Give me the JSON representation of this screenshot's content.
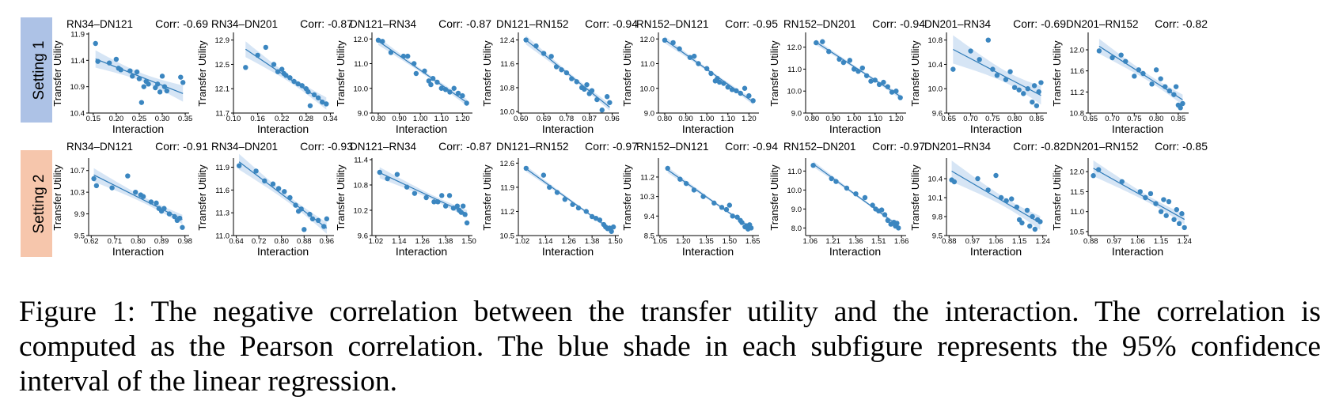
{
  "rows": [
    "Setting 1",
    "Setting 2"
  ],
  "colors": {
    "point": "#3b86c0",
    "line": "#2f7bb8",
    "ci": "#cfe0f3",
    "badge1": "#adc2e6",
    "badge2": "#f6c6ac"
  },
  "caption": "Figure 1: The negative correlation between the transfer utility and the interaction. The correlation is computed as the Pearson correlation. The blue shade in each subfigure represents the 95% confidence interval of the linear regression.",
  "chart_data": [
    {
      "type": "scatter",
      "row": 1,
      "title": "RN34–DN121",
      "corr": "Corr: -0.69",
      "xlabel": "Interaction",
      "ylabel": "Transfer Utility",
      "xticks": [
        "0.15",
        "0.20",
        "0.25",
        "0.30",
        "0.35"
      ],
      "yticks": [
        "10.4",
        "10.9",
        "11.4",
        "11.9"
      ],
      "xlim": [
        0.14,
        0.355
      ],
      "ylim": [
        10.4,
        11.9
      ],
      "x": [
        0.155,
        0.16,
        0.185,
        0.2,
        0.205,
        0.21,
        0.23,
        0.235,
        0.245,
        0.25,
        0.255,
        0.26,
        0.265,
        0.27,
        0.285,
        0.29,
        0.295,
        0.3,
        0.305,
        0.31,
        0.34,
        0.345
      ],
      "y": [
        11.72,
        11.38,
        11.35,
        11.42,
        11.25,
        11.22,
        11.2,
        11.1,
        11.18,
        11.05,
        10.6,
        10.9,
        11.0,
        10.95,
        10.88,
        10.95,
        10.8,
        11.1,
        10.9,
        10.82,
        11.08,
        10.98
      ]
    },
    {
      "type": "scatter",
      "row": 1,
      "title": "RN34–DN201",
      "corr": "Corr: -0.87",
      "xlabel": "Interaction",
      "ylabel": "Transfer Utility",
      "xticks": [
        "0.10",
        "0.16",
        "0.22",
        "0.28",
        "0.34"
      ],
      "yticks": [
        "11.7",
        "12.1",
        "12.5",
        "12.9"
      ],
      "xlim": [
        0.1,
        0.345
      ],
      "ylim": [
        11.7,
        13.0
      ],
      "x": [
        0.13,
        0.16,
        0.18,
        0.2,
        0.21,
        0.22,
        0.225,
        0.23,
        0.24,
        0.25,
        0.26,
        0.27,
        0.28,
        0.285,
        0.29,
        0.3,
        0.31,
        0.32,
        0.33
      ],
      "y": [
        12.45,
        12.65,
        12.78,
        12.5,
        12.38,
        12.42,
        12.35,
        12.32,
        12.28,
        12.22,
        12.18,
        12.15,
        12.1,
        12.05,
        11.82,
        12.0,
        11.95,
        11.88,
        11.85
      ]
    },
    {
      "type": "scatter",
      "row": 1,
      "title": "DN121–RN34",
      "corr": "Corr: -0.87",
      "xlabel": "Interaction",
      "ylabel": "Transfer Utility",
      "xticks": [
        "0.80",
        "0.90",
        "1.00",
        "1.10",
        "1.20"
      ],
      "yticks": [
        "9.0",
        "10.0",
        "11.0",
        "12.0"
      ],
      "xlim": [
        0.77,
        1.24
      ],
      "ylim": [
        9.0,
        12.2
      ],
      "x": [
        0.8,
        0.82,
        0.86,
        0.92,
        0.94,
        0.97,
        0.98,
        1.02,
        1.04,
        1.05,
        1.06,
        1.08,
        1.1,
        1.12,
        1.14,
        1.16,
        1.18,
        1.2,
        1.22
      ],
      "y": [
        11.95,
        11.9,
        11.45,
        11.3,
        11.3,
        11.0,
        10.6,
        10.7,
        10.3,
        10.15,
        10.4,
        10.25,
        10.0,
        9.95,
        9.85,
        10.0,
        9.8,
        9.7,
        9.4
      ]
    },
    {
      "type": "scatter",
      "row": 1,
      "title": "DN121–RN152",
      "corr": "Corr: -0.94",
      "xlabel": "Interaction",
      "ylabel": "Transfer Utility",
      "xticks": [
        "0.60",
        "0.69",
        "0.78",
        "0.87",
        "0.96"
      ],
      "yticks": [
        "10.0",
        "10.8",
        "11.6",
        "12.4"
      ],
      "xlim": [
        0.59,
        0.98
      ],
      "ylim": [
        9.95,
        12.6
      ],
      "x": [
        0.62,
        0.66,
        0.69,
        0.72,
        0.74,
        0.76,
        0.78,
        0.8,
        0.82,
        0.84,
        0.85,
        0.86,
        0.87,
        0.88,
        0.9,
        0.92,
        0.94,
        0.95
      ],
      "y": [
        12.4,
        12.2,
        11.95,
        11.85,
        11.5,
        11.4,
        11.3,
        11.1,
        11.0,
        10.8,
        10.75,
        10.9,
        10.6,
        10.7,
        10.4,
        10.05,
        10.5,
        10.3
      ]
    },
    {
      "type": "scatter",
      "row": 1,
      "title": "RN152–DN121",
      "corr": "Corr: -0.95",
      "xlabel": "Interaction",
      "ylabel": "Transfer Utility",
      "xticks": [
        "0.80",
        "0.90",
        "1.00",
        "1.10",
        "1.20"
      ],
      "yticks": [
        "9.0",
        "10.0",
        "11.0",
        "12.0"
      ],
      "xlim": [
        0.77,
        1.24
      ],
      "ylim": [
        9.0,
        12.2
      ],
      "x": [
        0.8,
        0.84,
        0.87,
        0.92,
        0.94,
        0.96,
        1.0,
        1.02,
        1.04,
        1.05,
        1.06,
        1.08,
        1.1,
        1.12,
        1.14,
        1.16,
        1.18,
        1.2,
        1.22
      ],
      "y": [
        11.95,
        11.85,
        11.6,
        11.25,
        11.3,
        11.0,
        10.8,
        10.6,
        10.3,
        10.4,
        10.25,
        10.2,
        10.05,
        9.95,
        9.9,
        9.8,
        10.0,
        9.7,
        9.5
      ]
    },
    {
      "type": "scatter",
      "row": 1,
      "title": "RN152–DN201",
      "corr": "Corr: -0.94",
      "xlabel": "Interaction",
      "ylabel": "Transfer Utility",
      "xticks": [
        "0.80",
        "0.90",
        "1.00",
        "1.10",
        "1.20"
      ],
      "yticks": [
        "9.0",
        "10.0",
        "11.0",
        "12.0"
      ],
      "xlim": [
        0.77,
        1.24
      ],
      "ylim": [
        9.0,
        12.6
      ],
      "x": [
        0.82,
        0.85,
        0.88,
        0.93,
        0.95,
        0.98,
        1.0,
        1.02,
        1.04,
        1.06,
        1.08,
        1.1,
        1.12,
        1.14,
        1.16,
        1.18,
        1.2,
        1.22
      ],
      "y": [
        12.2,
        12.25,
        11.8,
        11.45,
        11.3,
        11.4,
        11.0,
        10.9,
        11.05,
        10.7,
        10.45,
        10.5,
        10.3,
        10.4,
        10.2,
        9.95,
        10.0,
        9.7
      ]
    },
    {
      "type": "scatter",
      "row": 1,
      "title": "DN201–RN34",
      "corr": "Corr: -0.69",
      "xlabel": "Interaction",
      "ylabel": "Transfer Utility",
      "xticks": [
        "0.65",
        "0.70",
        "0.75",
        "0.80",
        "0.85"
      ],
      "yticks": [
        "9.6",
        "10.0",
        "10.4",
        "10.8"
      ],
      "xlim": [
        0.645,
        0.87
      ],
      "ylim": [
        9.6,
        10.9
      ],
      "x": [
        0.66,
        0.7,
        0.72,
        0.74,
        0.75,
        0.76,
        0.78,
        0.79,
        0.8,
        0.81,
        0.82,
        0.83,
        0.84,
        0.845,
        0.85,
        0.855,
        0.86
      ],
      "y": [
        10.32,
        10.62,
        10.48,
        10.8,
        10.32,
        10.22,
        10.15,
        10.28,
        10.02,
        9.98,
        9.92,
        10.0,
        9.78,
        10.05,
        9.72,
        9.95,
        10.1
      ]
    },
    {
      "type": "scatter",
      "row": 1,
      "title": "DN201–RN152",
      "corr": "Corr: -0.82",
      "xlabel": "Interaction",
      "ylabel": "Transfer Utility",
      "xticks": [
        "0.65",
        "0.70",
        "0.75",
        "0.80",
        "0.85"
      ],
      "yticks": [
        "10.8",
        "11.2",
        "11.6",
        "12.0"
      ],
      "xlim": [
        0.645,
        0.87
      ],
      "ylim": [
        10.8,
        12.3
      ],
      "x": [
        0.67,
        0.7,
        0.72,
        0.73,
        0.75,
        0.76,
        0.77,
        0.79,
        0.8,
        0.81,
        0.82,
        0.83,
        0.84,
        0.845,
        0.85,
        0.855,
        0.86
      ],
      "y": [
        11.98,
        11.85,
        11.9,
        11.78,
        11.5,
        11.62,
        11.55,
        11.35,
        11.62,
        11.45,
        11.3,
        11.22,
        11.15,
        11.3,
        10.95,
        10.9,
        10.98
      ]
    },
    {
      "type": "scatter",
      "row": 2,
      "title": "RN34–DN121",
      "corr": "Corr: -0.91",
      "xlabel": "Interaction",
      "ylabel": "Transfer Utility",
      "xticks": [
        "0.62",
        "0.71",
        "0.80",
        "0.89",
        "0.98"
      ],
      "yticks": [
        "9.5",
        "9.9",
        "10.3",
        "10.7"
      ],
      "xlim": [
        0.61,
        0.99
      ],
      "ylim": [
        9.5,
        10.9
      ],
      "x": [
        0.63,
        0.64,
        0.7,
        0.76,
        0.79,
        0.81,
        0.82,
        0.85,
        0.87,
        0.88,
        0.89,
        0.9,
        0.92,
        0.94,
        0.95,
        0.96,
        0.97
      ],
      "y": [
        10.55,
        10.42,
        10.38,
        10.6,
        10.3,
        10.25,
        10.22,
        10.12,
        10.1,
        10.0,
        9.95,
        10.0,
        9.9,
        9.85,
        9.78,
        9.82,
        9.65
      ]
    },
    {
      "type": "scatter",
      "row": 2,
      "title": "RN34–DN201",
      "corr": "Corr: -0.93",
      "xlabel": "Interaction",
      "ylabel": "Transfer Utility",
      "xticks": [
        "0.64",
        "0.72",
        "0.80",
        "0.88",
        "0.96"
      ],
      "yticks": [
        "11.0",
        "11.3",
        "11.6",
        "11.9"
      ],
      "xlim": [
        0.63,
        0.98
      ],
      "ylim": [
        11.0,
        12.0
      ],
      "x": [
        0.65,
        0.71,
        0.74,
        0.77,
        0.79,
        0.81,
        0.83,
        0.85,
        0.86,
        0.87,
        0.88,
        0.9,
        0.91,
        0.93,
        0.95,
        0.96
      ],
      "y": [
        11.92,
        11.85,
        11.72,
        11.68,
        11.62,
        11.58,
        11.5,
        11.4,
        11.32,
        11.35,
        11.08,
        11.28,
        11.22,
        11.2,
        11.12,
        11.22
      ]
    },
    {
      "type": "scatter",
      "row": 2,
      "title": "DN121–RN34",
      "corr": "Corr: -0.87",
      "xlabel": "Interaction",
      "ylabel": "Transfer Utility",
      "xticks": [
        "1.02",
        "1.14",
        "1.26",
        "1.38",
        "1.50"
      ],
      "yticks": [
        "9.6",
        "10.2",
        "10.8",
        "11.4"
      ],
      "xlim": [
        1.0,
        1.51
      ],
      "ylim": [
        9.6,
        11.4
      ],
      "x": [
        1.04,
        1.08,
        1.13,
        1.18,
        1.22,
        1.28,
        1.32,
        1.34,
        1.36,
        1.38,
        1.4,
        1.42,
        1.44,
        1.45,
        1.46,
        1.47,
        1.48,
        1.49
      ],
      "y": [
        11.1,
        10.95,
        11.05,
        10.75,
        10.6,
        10.5,
        10.4,
        10.4,
        10.55,
        10.3,
        10.55,
        10.25,
        10.3,
        10.2,
        10.15,
        10.3,
        10.1,
        9.9
      ]
    },
    {
      "type": "scatter",
      "row": 2,
      "title": "DN121–RN152",
      "corr": "Corr: -0.97",
      "xlabel": "Interaction",
      "ylabel": "Transfer Utility",
      "xticks": [
        "1.02",
        "1.14",
        "1.26",
        "1.38",
        "1.50"
      ],
      "yticks": [
        "10.5",
        "11.2",
        "11.9",
        "12.6"
      ],
      "xlim": [
        1.0,
        1.51
      ],
      "ylim": [
        10.5,
        12.7
      ],
      "x": [
        1.04,
        1.13,
        1.16,
        1.2,
        1.24,
        1.28,
        1.31,
        1.35,
        1.38,
        1.4,
        1.42,
        1.44,
        1.45,
        1.46,
        1.47,
        1.48,
        1.49
      ],
      "y": [
        12.45,
        12.25,
        11.9,
        11.75,
        11.55,
        11.4,
        11.3,
        11.2,
        11.05,
        11.0,
        10.95,
        10.82,
        10.75,
        10.7,
        10.72,
        10.62,
        10.75
      ]
    },
    {
      "type": "scatter",
      "row": 2,
      "title": "RN152–DN121",
      "corr": "Corr: -0.94",
      "xlabel": "Interaction",
      "ylabel": "Transfer Utility",
      "xticks": [
        "1.05",
        "1.20",
        "1.35",
        "1.50",
        "1.65"
      ],
      "yticks": [
        "8.5",
        "9.4",
        "10.3",
        "11.2"
      ],
      "xlim": [
        1.04,
        1.68
      ],
      "ylim": [
        8.5,
        12.0
      ],
      "x": [
        1.1,
        1.18,
        1.22,
        1.27,
        1.33,
        1.4,
        1.45,
        1.48,
        1.5,
        1.52,
        1.55,
        1.57,
        1.58,
        1.6,
        1.61,
        1.62,
        1.63,
        1.64
      ],
      "y": [
        11.6,
        11.1,
        10.9,
        10.6,
        10.3,
        10.0,
        9.8,
        9.7,
        9.9,
        9.4,
        9.35,
        9.2,
        9.1,
        8.9,
        8.95,
        8.8,
        9.0,
        8.85
      ]
    },
    {
      "type": "scatter",
      "row": 2,
      "title": "RN152–DN201",
      "corr": "Corr: -0.97",
      "xlabel": "Interaction",
      "ylabel": "Transfer Utility",
      "xticks": [
        "1.06",
        "1.21",
        "1.36",
        "1.51",
        "1.66"
      ],
      "yticks": [
        "8.0",
        "9.0",
        "10.0",
        "11.0"
      ],
      "xlim": [
        1.03,
        1.68
      ],
      "ylim": [
        7.6,
        11.6
      ],
      "x": [
        1.08,
        1.2,
        1.23,
        1.3,
        1.36,
        1.42,
        1.47,
        1.49,
        1.51,
        1.53,
        1.55,
        1.57,
        1.59,
        1.61,
        1.62,
        1.63,
        1.64
      ],
      "y": [
        11.3,
        10.6,
        10.45,
        10.1,
        9.8,
        9.6,
        9.2,
        9.0,
        8.9,
        8.95,
        8.7,
        8.4,
        8.2,
        8.3,
        8.1,
        8.25,
        8.0
      ]
    },
    {
      "type": "scatter",
      "row": 2,
      "title": "DN201–RN34",
      "corr": "Corr: -0.82",
      "xlabel": "Interaction",
      "ylabel": "Transfer Utility",
      "xticks": [
        "0.88",
        "0.97",
        "1.06",
        "1.15",
        "1.24"
      ],
      "yticks": [
        "9.5",
        "9.8",
        "10.1",
        "10.4"
      ],
      "xlim": [
        0.87,
        1.25
      ],
      "ylim": [
        9.5,
        10.7
      ],
      "x": [
        0.89,
        0.9,
        0.99,
        1.03,
        1.06,
        1.08,
        1.1,
        1.12,
        1.14,
        1.15,
        1.16,
        1.18,
        1.19,
        1.2,
        1.21,
        1.22,
        1.23
      ],
      "y": [
        10.38,
        10.35,
        10.4,
        10.22,
        10.45,
        10.1,
        10.05,
        10.08,
        9.95,
        9.75,
        9.7,
        9.9,
        9.65,
        9.8,
        9.6,
        9.75,
        9.72
      ]
    },
    {
      "type": "scatter",
      "row": 2,
      "title": "DN201–RN152",
      "corr": "Corr: -0.85",
      "xlabel": "Interaction",
      "ylabel": "Transfer Utility",
      "xticks": [
        "0.88",
        "0.97",
        "1.06",
        "1.15",
        "1.24"
      ],
      "yticks": [
        "10.5",
        "11.0",
        "11.5",
        "12.0"
      ],
      "xlim": [
        0.87,
        1.25
      ],
      "ylim": [
        10.4,
        12.3
      ],
      "x": [
        0.89,
        0.91,
        1.0,
        1.07,
        1.09,
        1.11,
        1.13,
        1.15,
        1.16,
        1.17,
        1.18,
        1.2,
        1.21,
        1.22,
        1.23,
        1.24
      ],
      "y": [
        11.9,
        12.05,
        11.75,
        11.5,
        11.35,
        11.45,
        11.2,
        11.0,
        11.3,
        10.9,
        11.25,
        10.8,
        11.05,
        10.7,
        10.95,
        10.6
      ]
    }
  ]
}
